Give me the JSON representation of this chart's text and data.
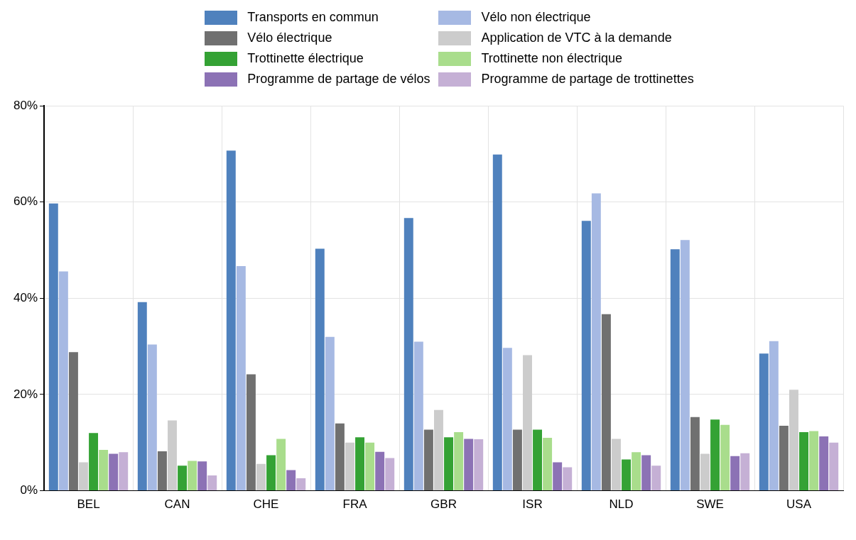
{
  "chart_data": {
    "type": "bar",
    "categories": [
      "BEL",
      "CAN",
      "CHE",
      "FRA",
      "GBR",
      "ISR",
      "NLD",
      "SWE",
      "USA"
    ],
    "series": [
      {
        "name": "Transports en commun",
        "color": "#4f81bd",
        "values": [
          59.7,
          39.2,
          70.7,
          50.3,
          56.7,
          69.9,
          56.1,
          50.2,
          28.5
        ]
      },
      {
        "name": "Vélo non électrique",
        "color": "#a6b9e3",
        "values": [
          45.6,
          30.4,
          46.7,
          32.0,
          31.0,
          29.7,
          61.8,
          52.1,
          31.1
        ]
      },
      {
        "name": "Vélo électrique",
        "color": "#707070",
        "values": [
          28.8,
          8.2,
          24.2,
          14.0,
          12.7,
          12.7,
          36.7,
          15.3,
          13.5
        ]
      },
      {
        "name": "Application de VTC à la demande",
        "color": "#cccccc",
        "values": [
          5.9,
          14.6,
          5.6,
          10.0,
          16.8,
          28.2,
          10.8,
          7.7,
          21.0
        ]
      },
      {
        "name": "Trottinette électrique",
        "color": "#34a234",
        "values": [
          12.0,
          5.2,
          7.4,
          11.1,
          11.1,
          12.7,
          6.5,
          14.8,
          12.2
        ]
      },
      {
        "name": "Trottinette non électrique",
        "color": "#a9dd8c",
        "values": [
          8.5,
          6.2,
          10.8,
          10.0,
          12.2,
          11.0,
          8.0,
          13.7,
          12.4
        ]
      },
      {
        "name": "Programme de partage de vélos",
        "color": "#8c72b5",
        "values": [
          7.7,
          6.1,
          4.3,
          8.1,
          10.8,
          5.9,
          7.4,
          7.2,
          11.3
        ]
      },
      {
        "name": "Programme de partage de trottinettes",
        "color": "#c5b0d5",
        "values": [
          8.0,
          3.2,
          2.6,
          6.8,
          10.7,
          4.9,
          5.2,
          7.8,
          10.0
        ]
      }
    ],
    "ylim": [
      0,
      80
    ],
    "yticks": [
      {
        "value": 0,
        "label": "0%"
      },
      {
        "value": 20,
        "label": "20%"
      },
      {
        "value": 40,
        "label": "40%"
      },
      {
        "value": 60,
        "label": "60%"
      },
      {
        "value": 80,
        "label": "80%"
      }
    ],
    "grid": true,
    "legend": "top"
  }
}
